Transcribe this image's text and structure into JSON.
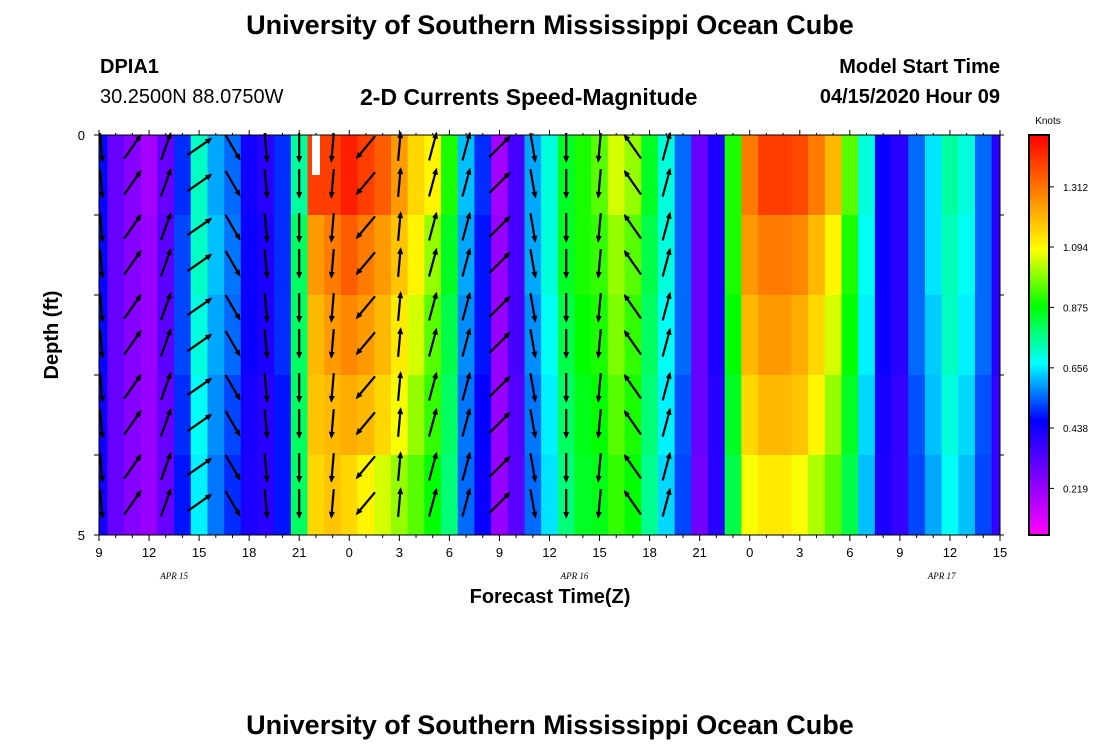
{
  "page": {
    "top_title": "University of Southern Mississippi Ocean Cube",
    "bottom_title": "University of Southern Mississippi Ocean Cube",
    "station_id": "DPIA1",
    "station_coords": "30.2500N 88.0750W",
    "chart_title": "2-D Currents Speed-Magnitude",
    "model_start_label": "Model Start Time",
    "model_start_value": "04/15/2020 Hour 09"
  },
  "chart_data": {
    "type": "heatmap",
    "title": "2-D Currents Speed-Magnitude",
    "xlabel": "Forecast Time(Z)",
    "ylabel": "Depth (ft)",
    "x_hours": [
      9,
      10,
      11,
      12,
      13,
      14,
      15,
      16,
      17,
      18,
      19,
      20,
      21,
      22,
      23,
      0,
      1,
      2,
      3,
      4,
      5,
      6,
      7,
      8,
      9,
      10,
      11,
      12,
      13,
      14,
      15,
      16,
      17,
      18,
      19,
      20,
      21,
      22,
      23,
      0,
      1,
      2,
      3,
      4,
      5,
      6,
      7,
      8,
      9,
      10,
      11,
      12,
      13,
      14,
      15
    ],
    "x_tick_labels": [
      "9",
      "12",
      "15",
      "18",
      "21",
      "0",
      "3",
      "6",
      "9",
      "12",
      "15",
      "18",
      "21",
      "0",
      "3",
      "6",
      "9",
      "12",
      "15"
    ],
    "x_date_labels": [
      "APR 15",
      "APR 16",
      "APR 17"
    ],
    "y_tick_labels": [
      "0",
      "5"
    ],
    "ylim": [
      0,
      5
    ],
    "colorbar": {
      "title": "Knots",
      "tick_labels": [
        "1.312",
        "1.094",
        "0.875",
        "0.656",
        "0.438",
        "0.219"
      ],
      "tick_values": [
        1.312,
        1.094,
        0.875,
        0.656,
        0.438,
        0.219
      ],
      "range": [
        0.05,
        1.5
      ],
      "colors": [
        "#ff00ff",
        "#8000ff",
        "#0000ff",
        "#00ffff",
        "#00ff00",
        "#ffff00",
        "#ff8000",
        "#ff0000"
      ]
    },
    "speed_knots": [
      [
        0.47,
        0.3,
        0.25,
        0.2,
        0.3,
        0.5,
        0.72,
        0.6,
        0.55,
        0.44,
        0.4,
        0.5,
        0.75,
        1.4,
        1.4,
        1.45,
        1.4,
        1.35,
        1.25,
        1.15,
        1.1,
        0.9,
        0.62,
        0.5,
        0.2,
        0.35,
        0.6,
        0.7,
        0.85,
        0.9,
        0.95,
        1.05,
        1.0,
        0.85,
        0.7,
        0.55,
        0.3,
        0.42,
        0.9,
        1.3,
        1.4,
        1.4,
        1.38,
        1.3,
        1.2,
        0.95,
        0.7,
        0.45,
        0.4,
        0.55,
        0.65,
        0.75,
        0.7,
        0.55,
        0.4
      ],
      [
        0.47,
        0.3,
        0.25,
        0.22,
        0.32,
        0.52,
        0.72,
        0.62,
        0.56,
        0.45,
        0.42,
        0.5,
        0.8,
        1.25,
        1.3,
        1.35,
        1.3,
        1.25,
        1.18,
        1.1,
        1.0,
        0.85,
        0.6,
        0.48,
        0.22,
        0.35,
        0.6,
        0.7,
        0.85,
        0.9,
        0.92,
        1.0,
        0.95,
        0.82,
        0.7,
        0.55,
        0.3,
        0.42,
        0.9,
        1.25,
        1.3,
        1.3,
        1.28,
        1.2,
        1.1,
        0.9,
        0.68,
        0.45,
        0.4,
        0.55,
        0.65,
        0.73,
        0.68,
        0.55,
        0.4
      ],
      [
        0.47,
        0.3,
        0.25,
        0.22,
        0.32,
        0.52,
        0.7,
        0.6,
        0.55,
        0.45,
        0.42,
        0.5,
        0.8,
        1.2,
        1.25,
        1.28,
        1.25,
        1.2,
        1.12,
        1.05,
        0.95,
        0.82,
        0.58,
        0.48,
        0.22,
        0.35,
        0.58,
        0.68,
        0.82,
        0.88,
        0.9,
        0.98,
        0.92,
        0.8,
        0.68,
        0.55,
        0.3,
        0.42,
        0.88,
        1.2,
        1.25,
        1.25,
        1.22,
        1.15,
        1.05,
        0.88,
        0.66,
        0.45,
        0.4,
        0.55,
        0.63,
        0.72,
        0.66,
        0.55,
        0.4
      ],
      [
        0.45,
        0.3,
        0.25,
        0.22,
        0.3,
        0.5,
        0.68,
        0.58,
        0.52,
        0.43,
        0.4,
        0.48,
        0.8,
        1.18,
        1.2,
        1.22,
        1.2,
        1.15,
        1.08,
        1.0,
        0.92,
        0.8,
        0.56,
        0.46,
        0.22,
        0.33,
        0.56,
        0.66,
        0.8,
        0.86,
        0.88,
        0.95,
        0.9,
        0.78,
        0.66,
        0.53,
        0.3,
        0.4,
        0.85,
        1.15,
        1.2,
        1.2,
        1.18,
        1.1,
        1.0,
        0.85,
        0.64,
        0.43,
        0.38,
        0.53,
        0.62,
        0.7,
        0.64,
        0.53,
        0.38
      ],
      [
        0.44,
        0.3,
        0.25,
        0.22,
        0.3,
        0.48,
        0.66,
        0.56,
        0.5,
        0.42,
        0.4,
        0.48,
        0.8,
        1.15,
        1.18,
        1.15,
        1.1,
        1.05,
        1.0,
        0.95,
        0.88,
        0.78,
        0.55,
        0.45,
        0.22,
        0.32,
        0.55,
        0.65,
        0.78,
        0.85,
        0.86,
        0.92,
        0.88,
        0.76,
        0.64,
        0.52,
        0.28,
        0.4,
        0.82,
        1.08,
        1.12,
        1.12,
        1.08,
        1.02,
        0.95,
        0.82,
        0.62,
        0.42,
        0.38,
        0.52,
        0.6,
        0.68,
        0.62,
        0.52,
        0.38
      ]
    ],
    "arrow_rows_ft": [
      0.15,
      0.6,
      1.15,
      1.6,
      2.15,
      2.6,
      3.15,
      3.6,
      4.15,
      4.6
    ],
    "arrow_columns": [
      {
        "hour_index": 0,
        "dir_deg": 175
      },
      {
        "hour_index": 2,
        "dir_deg": 35
      },
      {
        "hour_index": 4,
        "dir_deg": 20
      },
      {
        "hour_index": 6,
        "dir_deg": 55
      },
      {
        "hour_index": 8,
        "dir_deg": 150
      },
      {
        "hour_index": 10,
        "dir_deg": 175
      },
      {
        "hour_index": 12,
        "dir_deg": 180
      },
      {
        "hour_index": 14,
        "dir_deg": 185
      },
      {
        "hour_index": 16,
        "dir_deg": 220
      },
      {
        "hour_index": 18,
        "dir_deg": 5
      },
      {
        "hour_index": 20,
        "dir_deg": 15
      },
      {
        "hour_index": 22,
        "dir_deg": 15
      },
      {
        "hour_index": 24,
        "dir_deg": 45
      },
      {
        "hour_index": 26,
        "dir_deg": 170
      },
      {
        "hour_index": 28,
        "dir_deg": 180
      },
      {
        "hour_index": 30,
        "dir_deg": 185
      },
      {
        "hour_index": 32,
        "dir_deg": 325
      },
      {
        "hour_index": 34,
        "dir_deg": 15
      }
    ]
  }
}
